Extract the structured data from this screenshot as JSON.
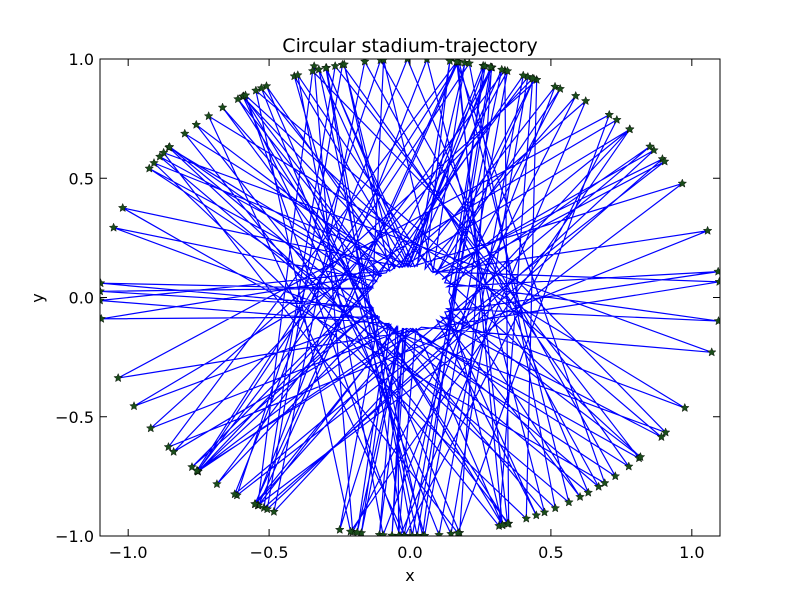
{
  "chart_data": {
    "type": "line",
    "title": "Circular stadium-trajectory",
    "xlabel": "x",
    "ylabel": "y",
    "xlim": [
      -1.1,
      1.1
    ],
    "ylim": [
      -1.0,
      1.0
    ],
    "xticks": [
      -1.0,
      -0.5,
      0.0,
      0.5,
      1.0
    ],
    "xtick_labels": [
      "−1.0",
      "−0.5",
      "0.0",
      "0.5",
      "1.0"
    ],
    "yticks": [
      -1.0,
      -0.5,
      0.0,
      0.5,
      1.0
    ],
    "ytick_labels": [
      "−1.0",
      "−0.5",
      "0.0",
      "0.5",
      "1.0"
    ],
    "grid": false,
    "legend": "none",
    "series": [
      {
        "kind": "trajectory",
        "color": "#0000ff",
        "boundary": {
          "shape": "ellipse",
          "center": [
            0.0,
            0.0
          ],
          "rx": 1.1,
          "ry": 1.0
        },
        "inner_obstacle": {
          "shape": "ellipse",
          "center": [
            0.0,
            0.0
          ],
          "rx": 0.14,
          "ry": 0.13
        },
        "start": [
          -0.34,
          0.97
        ],
        "bounces": 190
      },
      {
        "kind": "bounce-markers",
        "marker": "star",
        "color": "#1a4d1a",
        "on": "boundary"
      }
    ]
  },
  "colors": {
    "trajectory": "#0000ff",
    "markers": "#1a4d1a",
    "axes": "#000000",
    "background": "#ffffff"
  }
}
